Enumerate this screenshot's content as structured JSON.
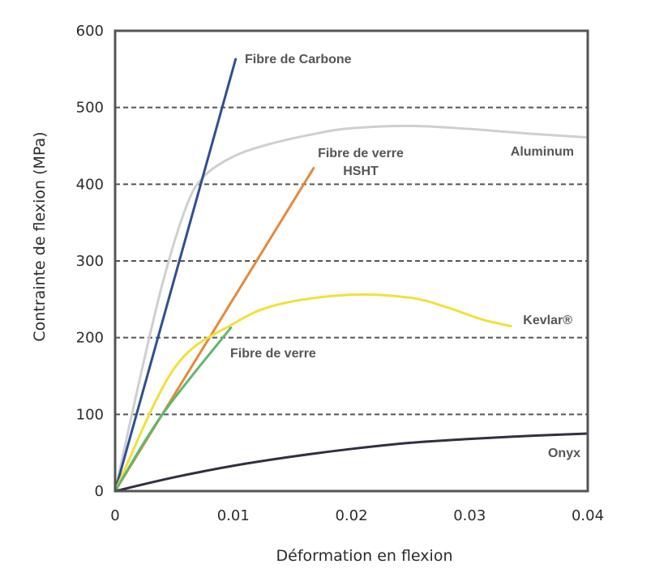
{
  "chart_data": {
    "type": "line",
    "xlabel": "Déformation en flexion",
    "ylabel": "Contrainte de flexion (MPa)",
    "xlim": [
      0,
      0.04
    ],
    "ylim": [
      0,
      600
    ],
    "x_ticks": [
      0,
      0.01,
      0.02,
      0.03,
      0.04
    ],
    "x_tick_labels": [
      "0",
      "0.01",
      "0.02",
      "0.03",
      "0.04"
    ],
    "y_ticks": [
      0,
      100,
      200,
      300,
      400,
      500,
      600
    ],
    "y_tick_labels": [
      "0",
      "100",
      "200",
      "300",
      "400",
      "500",
      "600"
    ],
    "grid": "horizontal-dashed",
    "series": [
      {
        "name": "Aluminum",
        "color": "#cfcfcf",
        "label_lines": [
          "Aluminum"
        ],
        "points": [
          [
            0,
            0
          ],
          [
            0.002,
            140
          ],
          [
            0.004,
            270
          ],
          [
            0.006,
            370
          ],
          [
            0.0075,
            410
          ],
          [
            0.01,
            436
          ],
          [
            0.013,
            452
          ],
          [
            0.017,
            466
          ],
          [
            0.02,
            473
          ],
          [
            0.025,
            476
          ],
          [
            0.03,
            472
          ],
          [
            0.035,
            466
          ],
          [
            0.04,
            461
          ]
        ]
      },
      {
        "name": "Fibre de Carbone",
        "color": "#2f4f91",
        "label_lines": [
          "Fibre de Carbone"
        ],
        "points": [
          [
            0,
            0
          ],
          [
            0.0102,
            563
          ]
        ]
      },
      {
        "name": "Fibre de verre HSHT",
        "color": "#e8883a",
        "label_lines": [
          "Fibre de verre",
          "HSHT"
        ],
        "points": [
          [
            0,
            0
          ],
          [
            0.0168,
            421
          ]
        ]
      },
      {
        "name": "Kevlar®",
        "color": "#f2e03a",
        "label_lines": [
          "Kevlar®"
        ],
        "points": [
          [
            0,
            0
          ],
          [
            0.005,
            160
          ],
          [
            0.01,
            218
          ],
          [
            0.014,
            244
          ],
          [
            0.02,
            256
          ],
          [
            0.025,
            252
          ],
          [
            0.028,
            240
          ],
          [
            0.031,
            224
          ],
          [
            0.0335,
            215
          ]
        ]
      },
      {
        "name": "Fibre de verre",
        "color": "#5fb86f",
        "label_lines": [
          "Fibre de verre"
        ],
        "points": [
          [
            0,
            0
          ],
          [
            0.004,
            100
          ],
          [
            0.0098,
            213
          ]
        ]
      },
      {
        "name": "Onyx",
        "color": "#2f3040",
        "label_lines": [
          "Onyx"
        ],
        "points": [
          [
            0,
            0
          ],
          [
            0.005,
            18
          ],
          [
            0.01,
            33
          ],
          [
            0.015,
            45
          ],
          [
            0.02,
            55
          ],
          [
            0.025,
            63
          ],
          [
            0.03,
            68
          ],
          [
            0.035,
            72
          ],
          [
            0.04,
            75
          ]
        ]
      }
    ]
  }
}
